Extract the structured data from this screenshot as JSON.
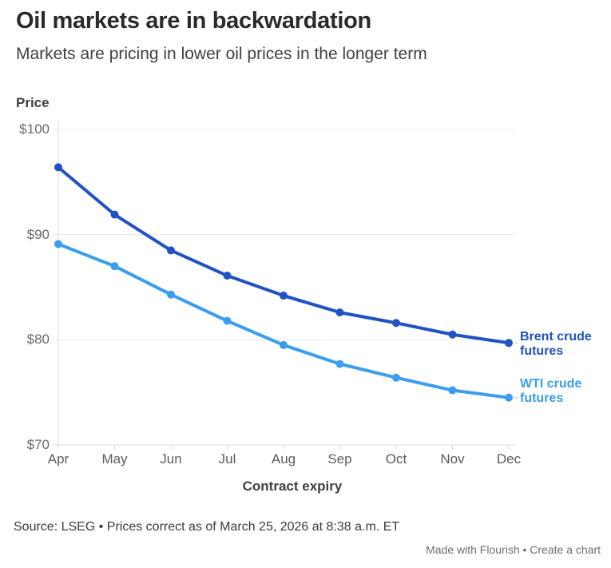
{
  "header": {
    "title": "Oil markets are in backwardation",
    "subtitle": "Markets are pricing in lower oil prices in the longer term"
  },
  "chart_data": {
    "type": "line",
    "title": "Oil markets are in backwardation",
    "subtitle": "Markets are pricing in lower oil prices in the longer term",
    "xlabel": "Contract expiry",
    "ylabel": "Price",
    "categories": [
      "Apr",
      "May",
      "Jun",
      "Jul",
      "Aug",
      "Sep",
      "Oct",
      "Nov",
      "Dec"
    ],
    "series": [
      {
        "name": "Brent crude futures",
        "label_lines": [
          "Brent crude",
          "futures"
        ],
        "color": "#2052c4",
        "values": [
          96.4,
          91.9,
          88.5,
          86.1,
          84.2,
          82.6,
          81.6,
          80.5,
          79.7
        ]
      },
      {
        "name": "WTI crude futures",
        "label_lines": [
          "WTI crude",
          "futures"
        ],
        "color": "#3a9df0",
        "values": [
          89.1,
          87.0,
          84.3,
          81.8,
          79.5,
          77.7,
          76.4,
          75.2,
          74.5
        ]
      }
    ],
    "ytick_labels": [
      "$100",
      "$90",
      "$80",
      "$70"
    ],
    "ytick_values": [
      100,
      90,
      80,
      70
    ],
    "ylim": [
      70,
      100
    ],
    "grid": "horizontal",
    "legend_position": "end-of-line-labels"
  },
  "footer": {
    "source": "Source: LSEG • Prices correct as of March 25, 2026 at 8:38 a.m. ET",
    "attribution": "Made with Flourish • Create a chart"
  }
}
